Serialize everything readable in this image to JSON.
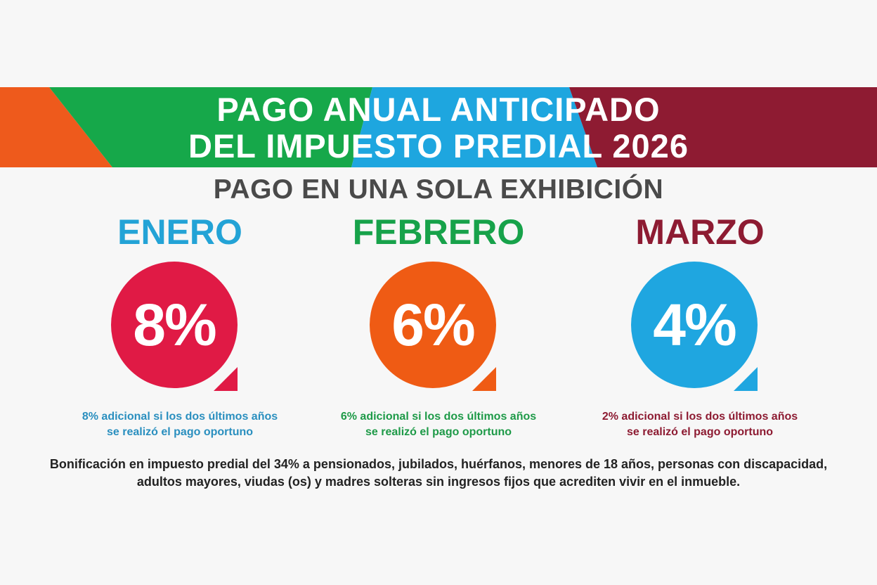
{
  "banner": {
    "title_line1": "PAGO ANUAL ANTICIPADO",
    "title_line2": "DEL IMPUESTO PREDIAL 2026",
    "colors": {
      "orange": "#ee5a1c",
      "green": "#16a84a",
      "blue": "#1ea6df",
      "maroon": "#8e1b32"
    }
  },
  "subtitle": "PAGO EN UNA SOLA EXHIBICIÓN",
  "months": [
    {
      "label": "ENERO",
      "percent": "8%",
      "note": "8% adicional si los dos últimos años se realizó el pago oportuno",
      "label_color": "#23a3d6",
      "badge_color": "#e01a45",
      "note_color": "#2a8fbf"
    },
    {
      "label": "FEBRERO",
      "percent": "6%",
      "note": "6% adicional si los dos últimos años se realizó el pago oportuno",
      "label_color": "#17a24a",
      "badge_color": "#ef5b14",
      "note_color": "#1e9a48"
    },
    {
      "label": "MARZO",
      "percent": "4%",
      "note": "2% adicional si los dos últimos años se realizó el pago oportuno",
      "label_color": "#8d1b32",
      "badge_color": "#1fa6e0",
      "note_color": "#8d1b32"
    }
  ],
  "footer": "Bonificación en impuesto predial del 34% a pensionados, jubilados, huérfanos, menores de 18 años, personas con discapacidad, adultos mayores, viudas (os) y madres solteras sin ingresos fijos que acrediten vivir en el inmueble."
}
